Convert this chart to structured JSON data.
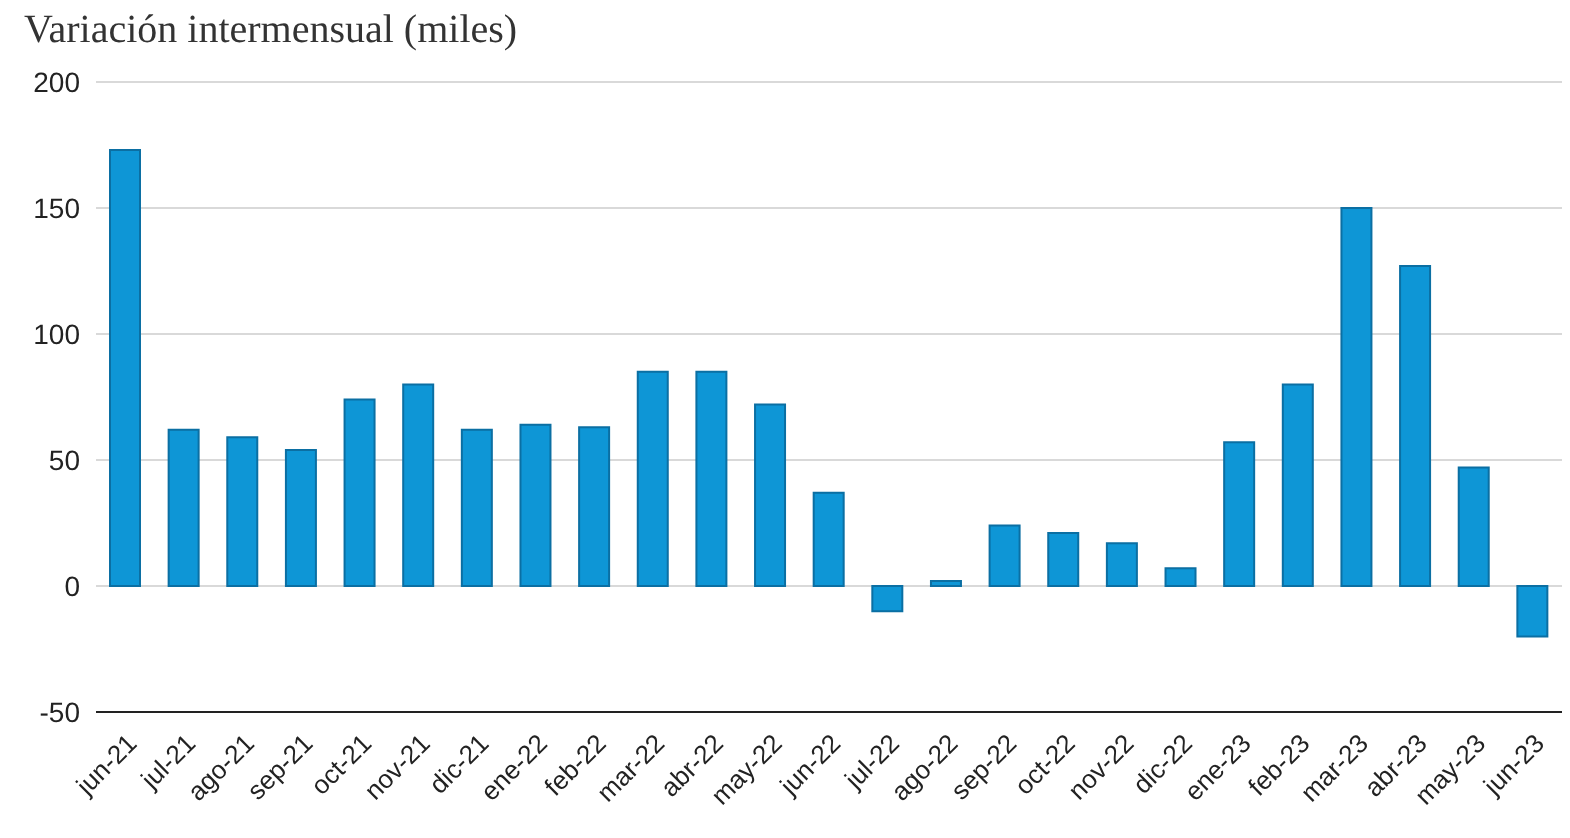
{
  "chart_data": {
    "type": "bar",
    "title": "Variación intermensual (miles)",
    "categories": [
      "jun-21",
      "jul-21",
      "ago-21",
      "sep-21",
      "oct-21",
      "nov-21",
      "dic-21",
      "ene-22",
      "feb-22",
      "mar-22",
      "abr-22",
      "may-22",
      "jun-22",
      "jul-22",
      "ago-22",
      "sep-22",
      "oct-22",
      "nov-22",
      "dic-22",
      "ene-23",
      "feb-23",
      "mar-23",
      "abr-23",
      "may-23",
      "jun-23"
    ],
    "values": [
      173,
      62,
      59,
      54,
      74,
      80,
      62,
      64,
      63,
      85,
      85,
      72,
      37,
      -10,
      2,
      24,
      21,
      17,
      7,
      57,
      80,
      150,
      127,
      47,
      -20
    ],
    "color": "#0e96d6",
    "ylim": [
      -50,
      200
    ],
    "yticks": [
      -50,
      0,
      50,
      100,
      150,
      200
    ],
    "grid": "y",
    "legend": false
  }
}
